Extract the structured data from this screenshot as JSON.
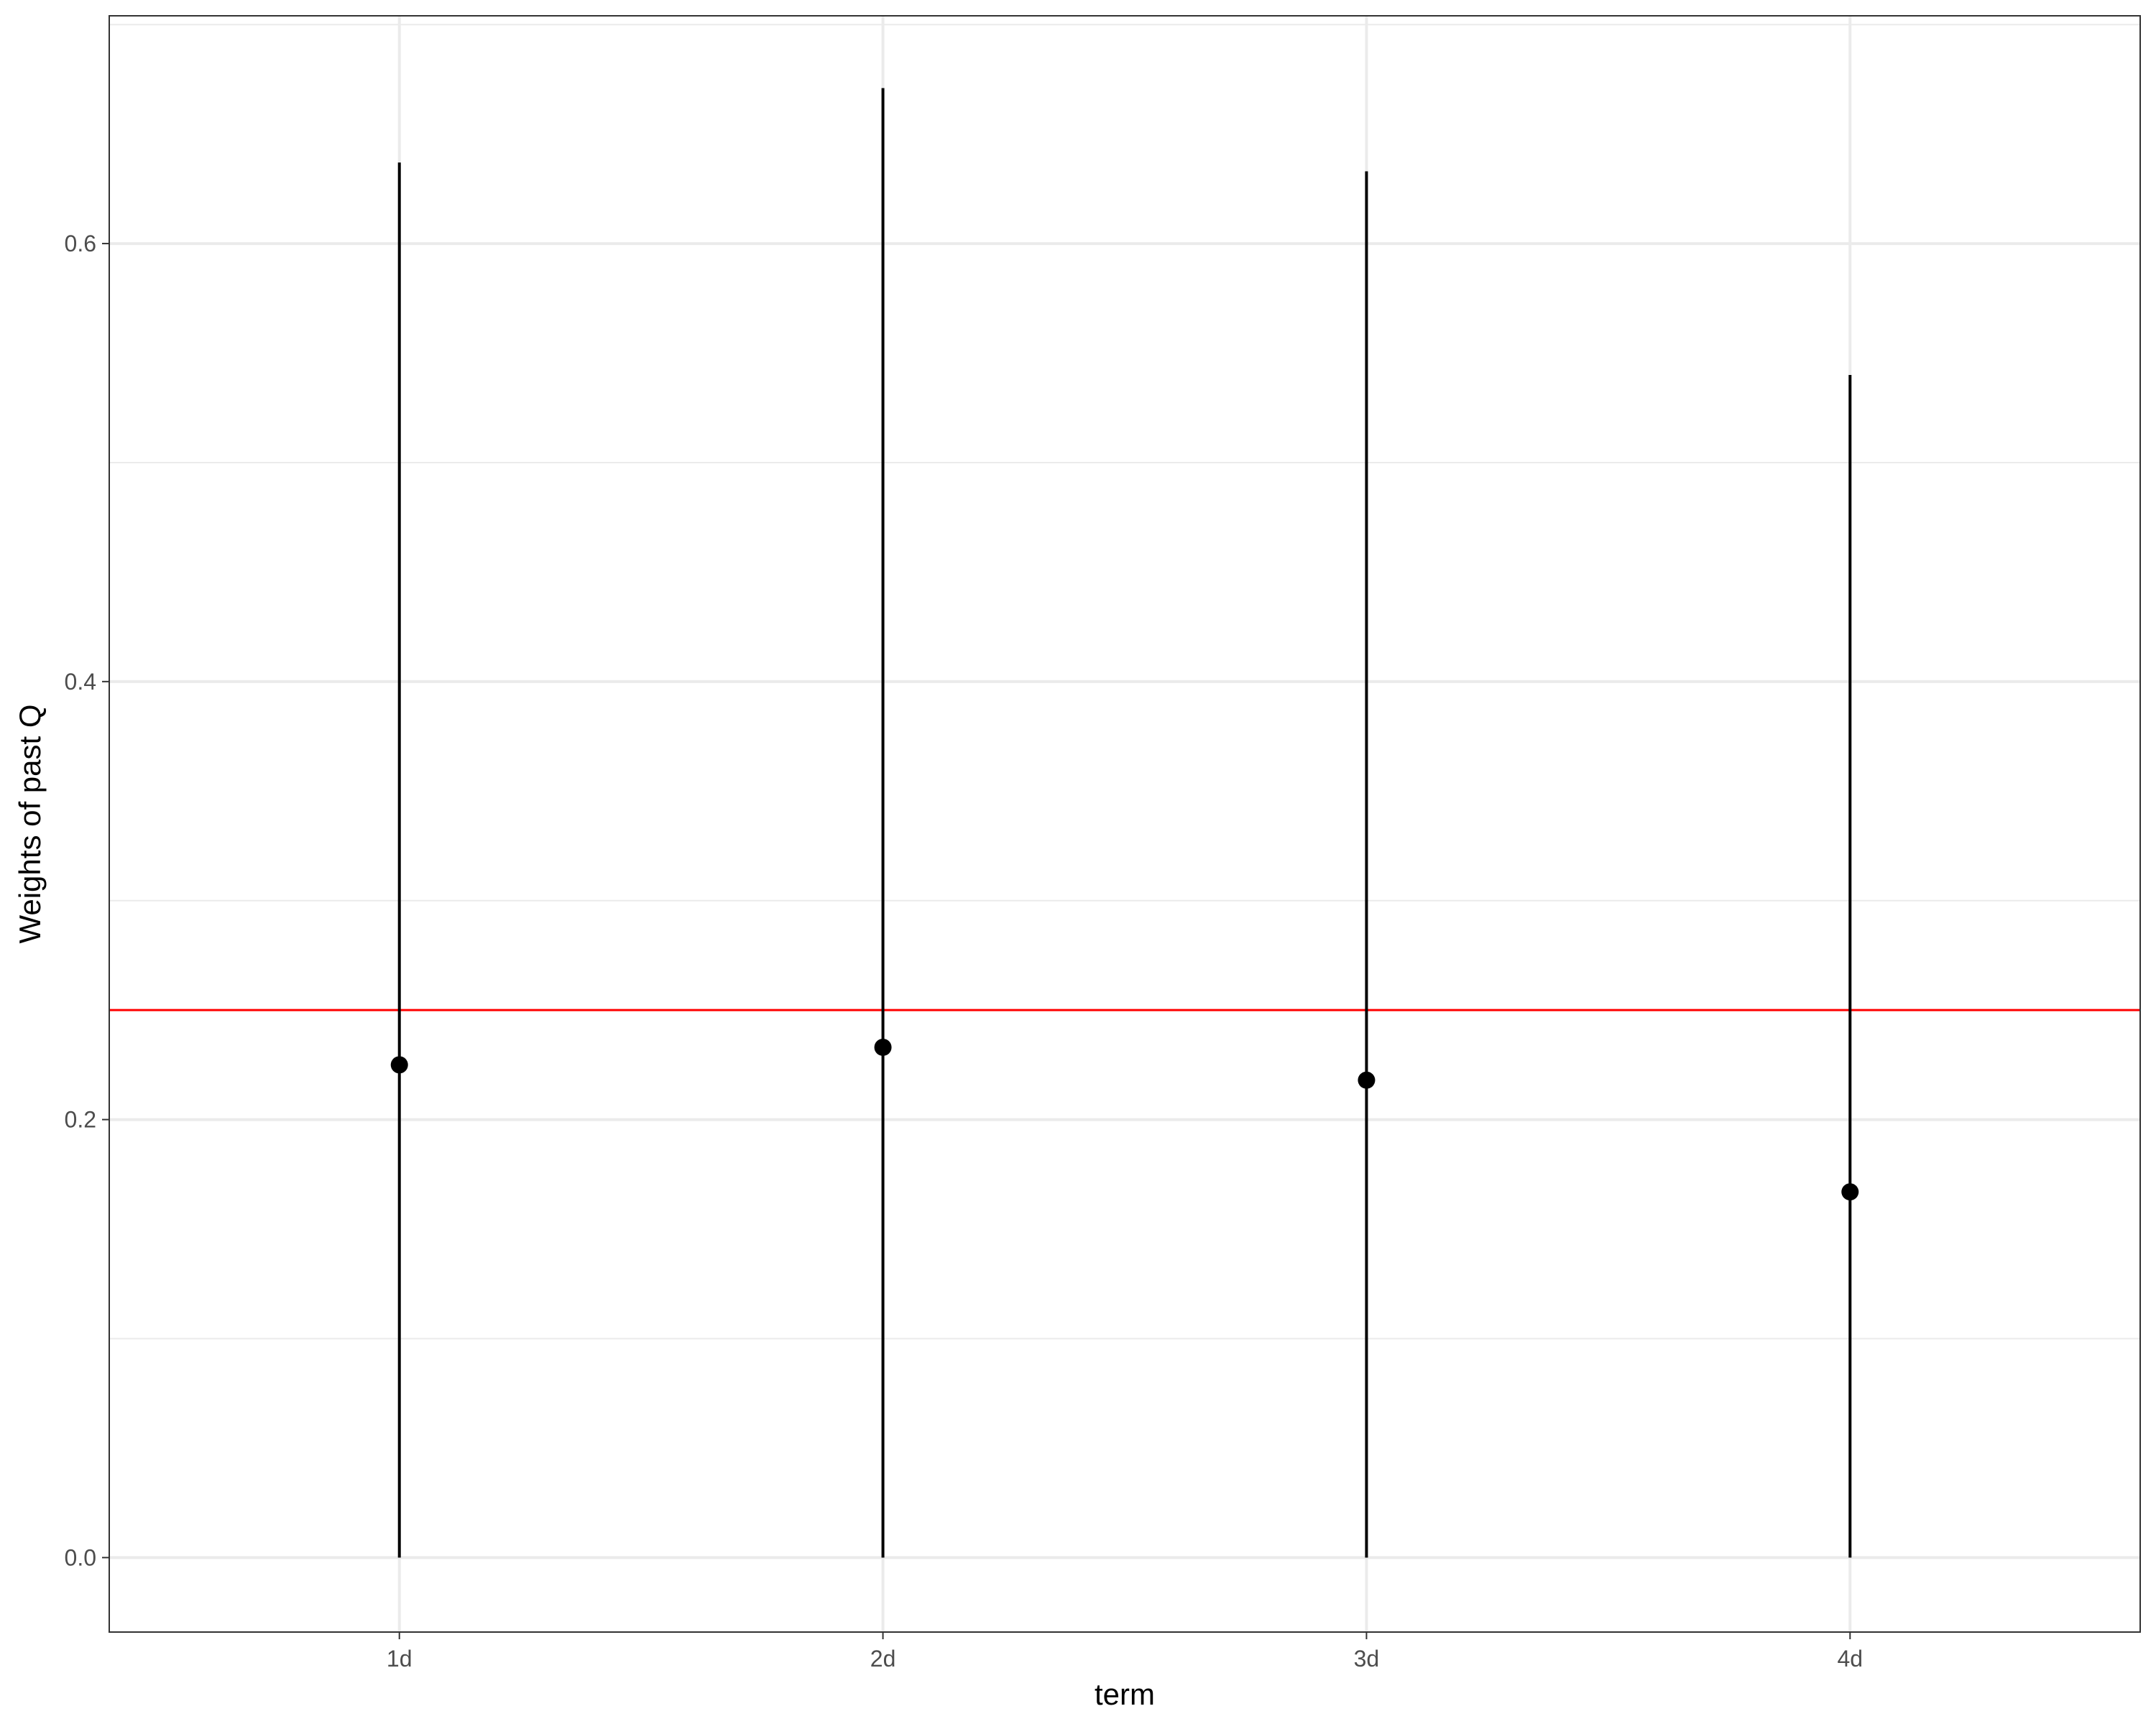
{
  "chart_data": {
    "type": "scatter",
    "title": "",
    "xlabel": "term",
    "ylabel": "Weights of past Q",
    "categories": [
      "1d",
      "2d",
      "3d",
      "4d"
    ],
    "points": [
      {
        "x": "1d",
        "y": 0.225,
        "ymin": 0.0,
        "ymax": 0.637
      },
      {
        "x": "2d",
        "y": 0.233,
        "ymin": 0.0,
        "ymax": 0.671
      },
      {
        "x": "3d",
        "y": 0.218,
        "ymin": 0.0,
        "ymax": 0.633
      },
      {
        "x": "4d",
        "y": 0.167,
        "ymin": 0.0,
        "ymax": 0.54
      }
    ],
    "reference_line": {
      "y": 0.25,
      "color": "#ff0000"
    },
    "ylim": [
      -0.034,
      0.704
    ],
    "yticks": [
      0.0,
      0.2,
      0.4,
      0.6
    ],
    "ytick_labels": [
      "0.0",
      "0.2",
      "0.4",
      "0.6"
    ],
    "grid": true,
    "colors": {
      "points": "#000000",
      "errorbars": "#000000",
      "grid": "#ebebeb",
      "panel_border": "#333333"
    }
  }
}
